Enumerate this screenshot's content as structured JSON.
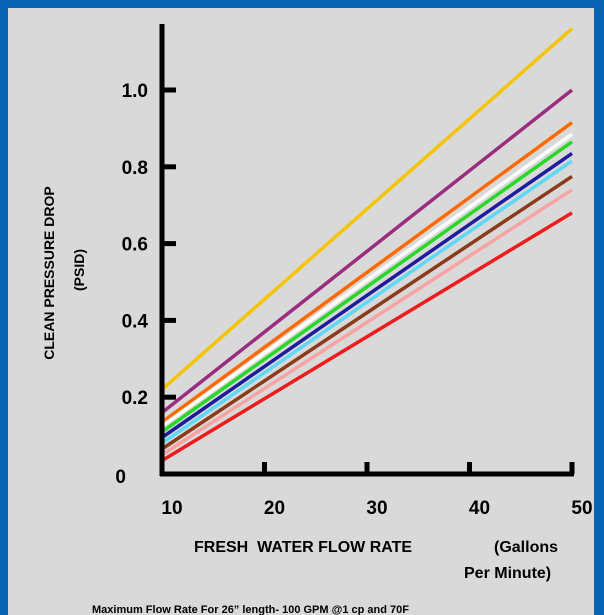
{
  "chart_data": {
    "type": "line",
    "ylabel_line1": "CLEAN  PRESSURE  DROP",
    "ylabel_line2": "(PSID)",
    "xlabel_part1": "FRESH  WATER FLOW RATE",
    "xlabel_part2": "(Gallons",
    "xlabel_part3": "Per Minute)",
    "footnote": "Maximum Flow Rate For 26” length- 100 GPM @1 cp and 70F",
    "xlim": [
      10,
      50
    ],
    "ylim": [
      0,
      1.2
    ],
    "x_ticks": [
      "10",
      "20",
      "30",
      "40",
      "50"
    ],
    "y_ticks": [
      {
        "value": 0,
        "label": "0"
      },
      {
        "value": 0.2,
        "label": "0.2"
      },
      {
        "value": 0.4,
        "label": "0.4"
      },
      {
        "value": 0.6,
        "label": "0.6"
      },
      {
        "value": 0.8,
        "label": "0.8"
      },
      {
        "value": 1.0,
        "label": "1.0"
      }
    ],
    "grid": false,
    "series": [
      {
        "color": "#f5c400",
        "x": [
          10,
          50
        ],
        "y": [
          0.22,
          1.16
        ]
      },
      {
        "color": "#9b2d7f",
        "x": [
          10,
          50
        ],
        "y": [
          0.16,
          1.0
        ]
      },
      {
        "color": "#ff6a00",
        "x": [
          10,
          50
        ],
        "y": [
          0.135,
          0.915
        ]
      },
      {
        "color": "#ffffff",
        "x": [
          10,
          50
        ],
        "y": [
          0.125,
          0.885
        ]
      },
      {
        "color": "#2bd62b",
        "x": [
          10,
          50
        ],
        "y": [
          0.11,
          0.865
        ]
      },
      {
        "color": "#1c1c9c",
        "x": [
          10,
          50
        ],
        "y": [
          0.095,
          0.835
        ]
      },
      {
        "color": "#5fd8f5",
        "x": [
          10,
          50
        ],
        "y": [
          0.08,
          0.815
        ]
      },
      {
        "color": "#8b3a1a",
        "x": [
          10,
          50
        ],
        "y": [
          0.065,
          0.775
        ]
      },
      {
        "color": "#f7a3a3",
        "x": [
          10,
          50
        ],
        "y": [
          0.05,
          0.74
        ]
      },
      {
        "color": "#ee1c1c",
        "x": [
          10,
          50
        ],
        "y": [
          0.035,
          0.68
        ]
      }
    ]
  }
}
